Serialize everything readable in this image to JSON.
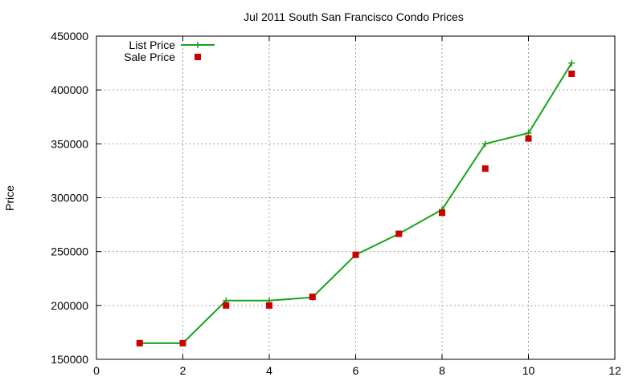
{
  "chart_data": {
    "type": "line",
    "title": "Jul 2011 South San Francisco Condo Prices",
    "xlabel": "",
    "ylabel": "Price",
    "xlim": [
      0,
      12
    ],
    "ylim": [
      150000,
      450000
    ],
    "x_ticks": [
      0,
      2,
      4,
      6,
      8,
      10,
      12
    ],
    "y_ticks": [
      150000,
      200000,
      250000,
      300000,
      350000,
      400000,
      450000
    ],
    "x_tick_labels": [
      "0",
      "2",
      "4",
      "6",
      "8",
      "10",
      "12"
    ],
    "y_tick_labels": [
      "150000",
      "200000",
      "250000",
      "300000",
      "350000",
      "400000",
      "450000"
    ],
    "grid": true,
    "legend_position": "top-left",
    "series": [
      {
        "name": "List Price",
        "style": "line-with-plus-markers",
        "color": "#16a31a",
        "x": [
          1,
          2,
          3,
          4,
          5,
          6,
          7,
          8,
          9,
          10,
          11
        ],
        "values": [
          165000,
          165000,
          204500,
          204500,
          207500,
          247000,
          266500,
          289000,
          350000,
          360000,
          425000
        ]
      },
      {
        "name": "Sale Price",
        "style": "square-markers",
        "color": "#cc0000",
        "x": [
          1,
          2,
          3,
          4,
          5,
          6,
          7,
          8,
          9,
          10,
          11
        ],
        "values": [
          165000,
          165000,
          200000,
          200000,
          208000,
          247000,
          266500,
          286000,
          327000,
          355000,
          415000
        ]
      }
    ]
  }
}
